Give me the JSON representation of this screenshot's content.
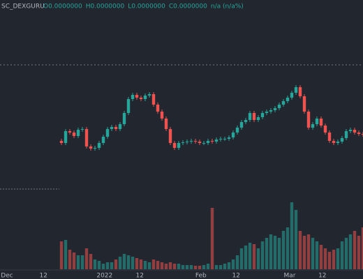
{
  "chart_data": {
    "type": "candlestick",
    "symbol": "SC_DEXGURU",
    "legend_values": [
      "O0.0000000",
      "H0.0000000",
      "L0.0000000",
      "C0.0000000",
      "n/a (n/a%)"
    ],
    "up_color": "#26a69a",
    "down_color": "#ef5350",
    "open": [
      98,
      95,
      112,
      110,
      105,
      114,
      115,
      90,
      87,
      88,
      95,
      104,
      115,
      118,
      115,
      122,
      138,
      158,
      164,
      160,
      158,
      163,
      165,
      150,
      140,
      130,
      115,
      95,
      88,
      95,
      96,
      97,
      98,
      97,
      95,
      95,
      98,
      97,
      100,
      101,
      101,
      103,
      110,
      117,
      125,
      128,
      138,
      128,
      132,
      138,
      140,
      142,
      145,
      150,
      155,
      160,
      167,
      175,
      162,
      140,
      117,
      122,
      130,
      120,
      110,
      98,
      95,
      97,
      102,
      112,
      114,
      110,
      108
    ],
    "high": [
      101,
      115,
      115,
      113,
      117,
      118,
      118,
      93,
      91,
      98,
      107,
      118,
      121,
      121,
      125,
      141,
      161,
      167,
      167,
      163,
      166,
      168,
      168,
      153,
      143,
      133,
      118,
      98,
      98,
      99,
      100,
      101,
      101,
      100,
      98,
      101,
      101,
      103,
      104,
      104,
      106,
      113,
      120,
      128,
      131,
      141,
      141,
      135,
      141,
      143,
      145,
      148,
      153,
      158,
      163,
      170,
      178,
      178,
      165,
      143,
      125,
      133,
      133,
      123,
      113,
      101,
      100,
      105,
      115,
      117,
      117,
      113,
      111
    ],
    "low": [
      92,
      92,
      107,
      102,
      102,
      111,
      87,
      84,
      84,
      85,
      92,
      101,
      112,
      112,
      112,
      119,
      135,
      155,
      157,
      155,
      155,
      160,
      147,
      137,
      127,
      112,
      92,
      85,
      85,
      92,
      93,
      94,
      94,
      92,
      92,
      92,
      94,
      94,
      97,
      98,
      98,
      100,
      107,
      114,
      122,
      125,
      125,
      125,
      129,
      135,
      137,
      139,
      142,
      147,
      152,
      157,
      164,
      159,
      137,
      114,
      114,
      119,
      117,
      107,
      95,
      92,
      92,
      94,
      99,
      109,
      107,
      105,
      104
    ],
    "close": [
      95,
      112,
      110,
      105,
      114,
      115,
      90,
      87,
      88,
      95,
      104,
      115,
      118,
      115,
      122,
      138,
      158,
      164,
      160,
      158,
      163,
      165,
      150,
      140,
      130,
      115,
      95,
      88,
      95,
      96,
      97,
      98,
      97,
      95,
      95,
      98,
      97,
      100,
      101,
      101,
      103,
      110,
      117,
      125,
      128,
      138,
      128,
      132,
      138,
      140,
      142,
      145,
      150,
      155,
      160,
      167,
      175,
      162,
      140,
      117,
      122,
      130,
      120,
      110,
      98,
      95,
      97,
      102,
      112,
      114,
      110,
      108,
      107
    ],
    "volume": [
      40,
      42,
      28,
      24,
      20,
      20,
      30,
      22,
      14,
      12,
      8,
      10,
      10,
      14,
      18,
      22,
      20,
      18,
      16,
      14,
      12,
      10,
      14,
      12,
      10,
      8,
      10,
      8,
      8,
      6,
      6,
      6,
      5,
      5,
      6,
      8,
      88,
      6,
      6,
      8,
      10,
      14,
      20,
      30,
      34,
      38,
      36,
      30,
      40,
      45,
      50,
      48,
      45,
      55,
      60,
      96,
      85,
      55,
      48,
      50,
      45,
      40,
      35,
      30,
      25,
      28,
      30,
      40,
      45,
      50,
      55,
      48,
      60
    ],
    "ylim": [
      80,
      270
    ],
    "volume_lim": [
      0,
      100
    ],
    "xlim": [
      -14.67,
      72
    ],
    "xticks": [
      {
        "value": -13,
        "label": "Dec"
      },
      {
        "value": -4.3,
        "label": "12"
      },
      {
        "value": 10.3,
        "label": "2022"
      },
      {
        "value": 18.7,
        "label": "12"
      },
      {
        "value": 33.3,
        "label": "Feb"
      },
      {
        "value": 41.7,
        "label": "12"
      },
      {
        "value": 54.5,
        "label": "Mar"
      },
      {
        "value": 62.3,
        "label": "12"
      }
    ]
  }
}
